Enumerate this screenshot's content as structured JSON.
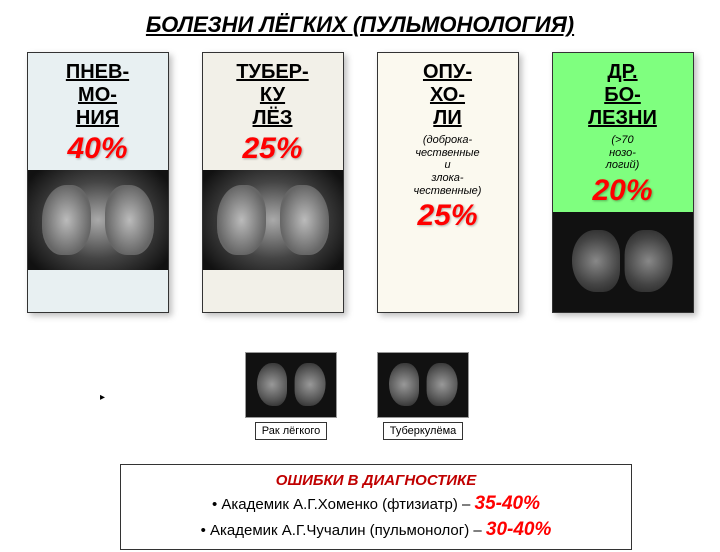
{
  "title": "БОЛЕЗНИ  ЛЁГКИХ (ПУЛЬМОНОЛОГИЯ)",
  "cards": [
    {
      "name_lines": "ПНЕВ-\nМО-\nНИЯ",
      "sub": "",
      "percent": "40%",
      "bg": "#e8f0f2",
      "img_type": "xray",
      "height_body": 120
    },
    {
      "name_lines": "ТУБЕР-\nКУ\nЛЁЗ",
      "sub": "",
      "percent": "25%",
      "bg": "#f2f0e8",
      "img_type": "xray",
      "height_body": 120
    },
    {
      "name_lines": "ОПУ-\nХО-\nЛИ",
      "sub": "(доброка-\nчественные\nи\nзлока-\nчественные)",
      "percent": "25%",
      "bg": "#fbf9ef",
      "img_type": "none",
      "height_body": 230
    },
    {
      "name_lines": "ДР.\nБО-\nЛЕЗНИ",
      "sub": "(>70\nнозо-\nлогий)",
      "percent": "20%",
      "bg": "#7fff7f",
      "img_type": "ct",
      "height_body": 180
    }
  ],
  "small_images": [
    {
      "label": "Рак лёгкого"
    },
    {
      "label": "Туберкулёма"
    }
  ],
  "errors": {
    "title": "ОШИБКИ В ДИАГНОСТИКЕ",
    "lines": [
      {
        "text": "Академик А.Г.Хоменко (фтизиатр) – ",
        "pct": "35-40%"
      },
      {
        "text": "Академик А.Г.Чучалин (пульмонолог) – ",
        "pct": "30-40%"
      }
    ]
  }
}
